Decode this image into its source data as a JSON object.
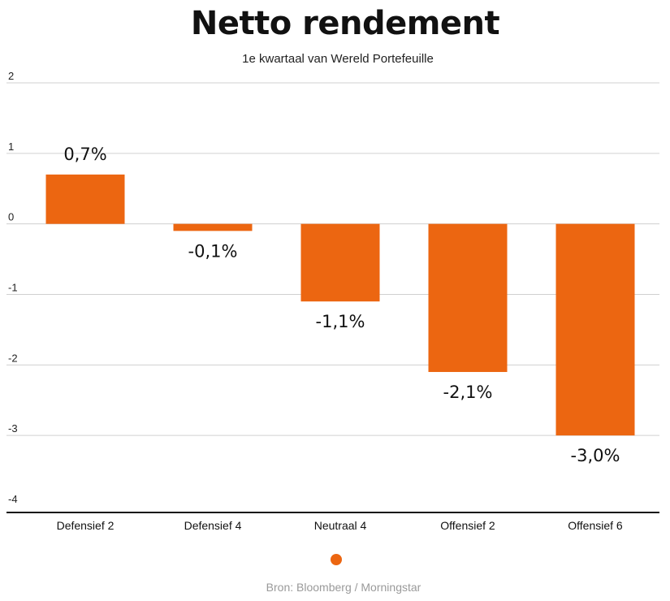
{
  "colors": {
    "bar": "#ec6611",
    "grid": "#d0d0d0",
    "axis": "#111111"
  },
  "chart_data": {
    "type": "bar",
    "title": "Netto rendement",
    "subtitle": "1e kwartaal van Wereld Portefeuille",
    "categories": [
      "Defensief 2",
      "Defensief 4",
      "Neutraal 4",
      "Offensief 2",
      "Offensief 6"
    ],
    "values": [
      0.7,
      -0.1,
      -1.1,
      -2.1,
      -3.0
    ],
    "data_labels": [
      "0,7%",
      "-0,1%",
      "-1,1%",
      "-2,1%",
      "-3,0%"
    ],
    "yticks": [
      "2",
      "1",
      "0",
      "-1",
      "-2",
      "-3",
      "-4"
    ],
    "ylim": [
      -4,
      2
    ],
    "grid": true,
    "legend": {
      "placement": "bottom",
      "marker": "circle"
    },
    "source": "Bron: Bloomberg / Morningstar"
  }
}
